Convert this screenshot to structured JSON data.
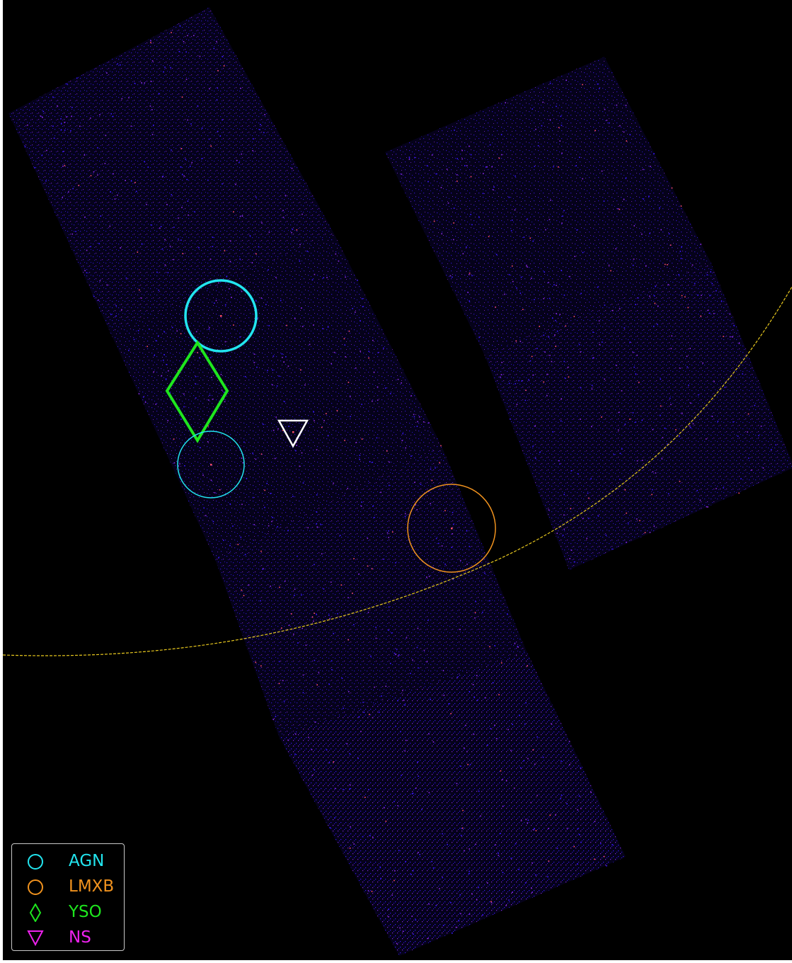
{
  "colors": {
    "background": "#000000",
    "photon_blue": "#3a18ff",
    "photon_purple": "#8a2be2",
    "photon_hot": "#ff4f6a",
    "ecliptic_line": "#e8c81e",
    "AGN": "#22e5ef",
    "LMXB": "#f0921e",
    "YSO": "#1ee61e",
    "NS": "#ee22ee",
    "target_marker": "#ffffff"
  },
  "legend": {
    "items": [
      {
        "key": "AGN",
        "label": "AGN",
        "marker": "circle-icon",
        "color": "#22e5ef"
      },
      {
        "key": "LMXB",
        "label": "LMXB",
        "marker": "circle-icon",
        "color": "#f0921e"
      },
      {
        "key": "YSO",
        "label": "YSO",
        "marker": "diamond-icon",
        "color": "#1ee61e"
      },
      {
        "key": "NS",
        "label": "NS",
        "marker": "triangle-down-icon",
        "color": "#ee22ee"
      }
    ]
  },
  "sources": [
    {
      "class": "AGN",
      "marker": "circle-icon",
      "emphasis": "bold"
    },
    {
      "class": "YSO",
      "marker": "diamond-icon",
      "emphasis": "bold"
    },
    {
      "class": "AGN",
      "marker": "circle-icon",
      "emphasis": "thin"
    },
    {
      "class": "LMXB",
      "marker": "circle-icon",
      "emphasis": "thin"
    }
  ],
  "target": {
    "marker": "triangle-down-icon",
    "color": "#ffffff"
  }
}
